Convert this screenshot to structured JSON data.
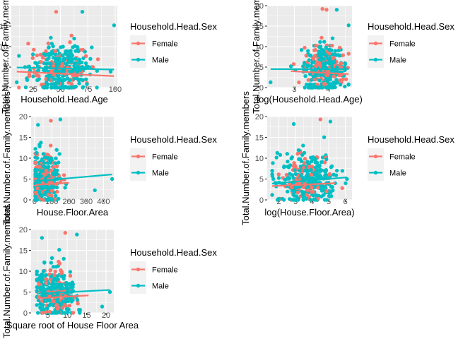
{
  "colors": {
    "female": "#F8766D",
    "male": "#00BFC4"
  },
  "legend": {
    "title": "Household.Head.Sex",
    "items": [
      "Female",
      "Male"
    ]
  },
  "chart_data": [
    {
      "type": "scatter",
      "xlabel": "Household.Head.Age",
      "ylabel": "Total.Number.of.Family.members",
      "xlim": [
        5,
        102
      ],
      "ylim": [
        0,
        20
      ],
      "xticks": [
        25,
        50,
        75,
        100
      ],
      "yticks": [
        0,
        5,
        10,
        15
      ],
      "ytick_labels": [
        "0",
        "5",
        "10",
        "15"
      ],
      "x_center": 50,
      "x_spread": 14,
      "x_min": 12,
      "x_max": 99,
      "outliers": [
        [
          46,
          18.5,
          "Female"
        ],
        [
          70,
          18.5,
          "Male"
        ],
        [
          99,
          15.2,
          "Male"
        ],
        [
          60,
          12.7,
          "Female"
        ],
        [
          10,
          1.3,
          "Male"
        ]
      ],
      "trend": {
        "Female": [
          [
            10,
            3.9
          ],
          [
            99,
            2.8
          ]
        ],
        "Male": [
          [
            10,
            4.9
          ],
          [
            99,
            4.4
          ]
        ]
      }
    },
    {
      "type": "scatter",
      "xlabel": "log(Household.Head.Age)",
      "ylabel": "Total.Number.of.Family.members",
      "xlim": [
        2.2,
        4.7
      ],
      "ylim": [
        0,
        20
      ],
      "xticks": [
        3,
        4
      ],
      "yticks": [
        0,
        5,
        10,
        15,
        20
      ],
      "ytick_labels": [
        "0",
        "5",
        "10",
        "15",
        "20"
      ],
      "x_center": 3.88,
      "x_spread": 0.3,
      "x_min": 2.9,
      "x_max": 4.6,
      "outliers": [
        [
          3.83,
          19.2,
          "Female"
        ],
        [
          3.95,
          19.0,
          "Female"
        ],
        [
          4.25,
          19.0,
          "Male"
        ],
        [
          4.6,
          15.2,
          "Male"
        ],
        [
          2.3,
          1.3,
          "Male"
        ]
      ],
      "trend": {
        "Female": [
          [
            2.9,
            4.0
          ],
          [
            4.6,
            3.3
          ]
        ],
        "Male": [
          [
            2.3,
            4.5
          ],
          [
            4.6,
            4.5
          ]
        ]
      }
    },
    {
      "type": "scatter",
      "xlabel": "House.Floor.Area",
      "ylabel": "Total.Number.of.Family.members",
      "xlim": [
        -20,
        460
      ],
      "ylim": [
        0,
        20
      ],
      "xticks": [
        0,
        100,
        200,
        300,
        400
      ],
      "yticks": [
        0,
        5,
        10,
        15,
        20
      ],
      "ytick_labels": [
        "0",
        "5",
        "10",
        "15",
        "20"
      ],
      "x_center": 55,
      "x_spread": 45,
      "x_min": 5,
      "x_max": 450,
      "outliers": [
        [
          20,
          18.0,
          "Male"
        ],
        [
          150,
          19.3,
          "Male"
        ],
        [
          95,
          19.0,
          "Female"
        ],
        [
          450,
          5.0,
          "Male"
        ],
        [
          350,
          2.3,
          "Male"
        ]
      ],
      "trend": {
        "Female": [
          [
            5,
            3.6
          ],
          [
            200,
            4.1
          ]
        ],
        "Male": [
          [
            5,
            4.5
          ],
          [
            450,
            6.1
          ]
        ]
      }
    },
    {
      "type": "scatter",
      "xlabel": "log(House.Floor.Area)",
      "ylabel": "Total.Number.of.Family.members",
      "xlim": [
        1.3,
        6.4
      ],
      "ylim": [
        0,
        20
      ],
      "xticks": [
        2,
        3,
        4,
        5,
        6
      ],
      "yticks": [
        0,
        5,
        10,
        15,
        20
      ],
      "ytick_labels": [
        "0",
        "5",
        "10",
        "15",
        "20"
      ],
      "x_center": 3.7,
      "x_spread": 0.85,
      "x_min": 1.6,
      "x_max": 6.1,
      "outliers": [
        [
          2.9,
          18.2,
          "Male"
        ],
        [
          4.5,
          19.3,
          "Female"
        ],
        [
          5.1,
          18.8,
          "Male"
        ],
        [
          6.1,
          5.0,
          "Male"
        ],
        [
          1.6,
          1.2,
          "Male"
        ]
      ],
      "trend": {
        "Female": [
          [
            1.6,
            3.3
          ],
          [
            5.4,
            4.0
          ]
        ],
        "Male": [
          [
            1.6,
            3.9
          ],
          [
            6.1,
            5.4
          ]
        ]
      }
    },
    {
      "type": "scatter",
      "xlabel": "Square root of House Floor Area",
      "ylabel": "Total.Number.of.Family.members",
      "xlim": [
        0.7,
        22
      ],
      "ylim": [
        0,
        20
      ],
      "xticks": [
        5,
        10,
        15,
        20
      ],
      "yticks": [
        0,
        5,
        10,
        15,
        20
      ],
      "ytick_labels": [
        "0",
        "5",
        "10",
        "15",
        "20"
      ],
      "x_center": 7,
      "x_spread": 2.6,
      "x_min": 2.2,
      "x_max": 21,
      "outliers": [
        [
          3.5,
          18.0,
          "Male"
        ],
        [
          9.5,
          19.2,
          "Female"
        ],
        [
          12.5,
          18.8,
          "Male"
        ],
        [
          21,
          5.0,
          "Male"
        ],
        [
          19,
          1.5,
          "Male"
        ]
      ],
      "trend": {
        "Female": [
          [
            2.2,
            3.5
          ],
          [
            15.5,
            4.2
          ]
        ],
        "Male": [
          [
            2.2,
            4.6
          ],
          [
            21,
            5.5
          ]
        ]
      }
    }
  ]
}
